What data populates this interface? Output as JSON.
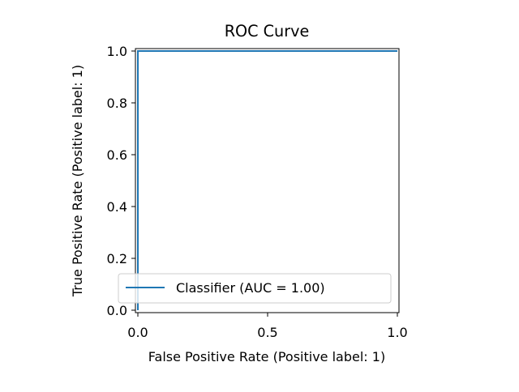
{
  "chart_data": {
    "type": "line",
    "title": "ROC Curve",
    "xlabel": "False Positive Rate (Positive label: 1)",
    "ylabel": "True Positive Rate (Positive label: 1)",
    "xlim": [
      0,
      1
    ],
    "ylim": [
      0,
      1
    ],
    "x_ticks": [
      "0.0",
      "0.5",
      "1.0"
    ],
    "y_ticks": [
      "0.0",
      "0.2",
      "0.4",
      "0.6",
      "0.8",
      "1.0"
    ],
    "x_tick_values": [
      0,
      0.5,
      1
    ],
    "y_tick_values": [
      0,
      0.2,
      0.4,
      0.6,
      0.8,
      1
    ],
    "grid": false,
    "legend_position": "lower-right",
    "series": [
      {
        "name": "Classifier (AUC = 1.00)",
        "color": "#1f77b4",
        "x": [
          0,
          0,
          0,
          1
        ],
        "y": [
          0,
          0.01,
          1,
          1
        ]
      }
    ]
  }
}
